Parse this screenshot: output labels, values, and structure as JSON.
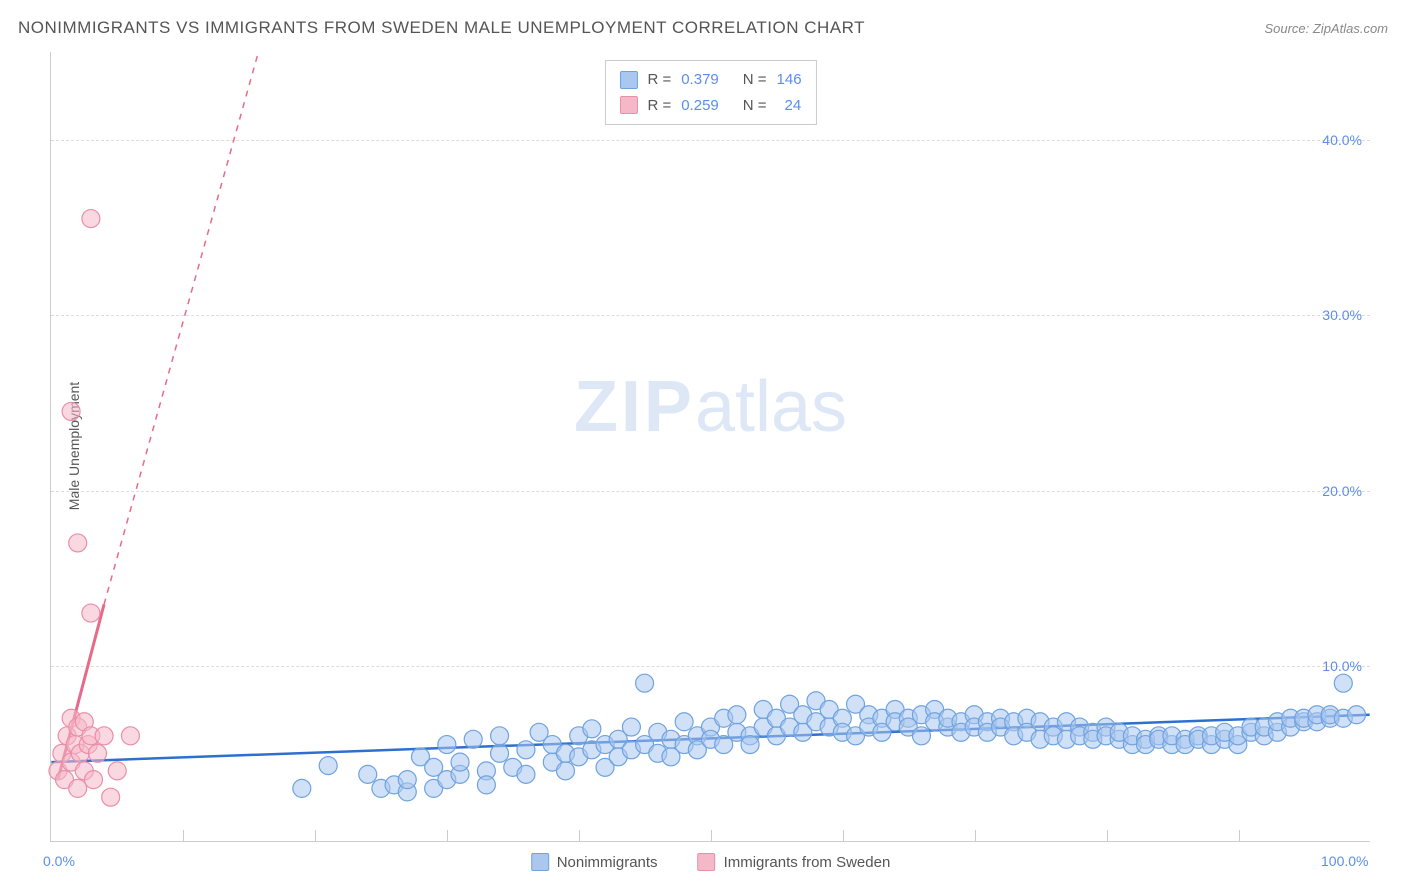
{
  "title": "NONIMMIGRANTS VS IMMIGRANTS FROM SWEDEN MALE UNEMPLOYMENT CORRELATION CHART",
  "source": "Source: ZipAtlas.com",
  "y_axis_label": "Male Unemployment",
  "watermark_bold": "ZIP",
  "watermark_rest": "atlas",
  "chart": {
    "type": "scatter",
    "xlim": [
      0,
      100
    ],
    "ylim": [
      0,
      45
    ],
    "x_ticks": [
      0,
      100
    ],
    "x_tick_labels": [
      "0.0%",
      "100.0%"
    ],
    "x_minor_ticks": [
      10,
      20,
      30,
      40,
      50,
      60,
      70,
      80,
      90
    ],
    "y_ticks": [
      10,
      20,
      30,
      40
    ],
    "y_tick_labels": [
      "10.0%",
      "20.0%",
      "30.0%",
      "40.0%"
    ],
    "background_color": "#ffffff",
    "grid_color": "#dddddd",
    "marker_radius": 9,
    "marker_opacity": 0.55,
    "line_width": 2.5,
    "series": [
      {
        "key": "nonimmigrants",
        "label": "Nonimmigrants",
        "color_fill": "#a9c7ef",
        "color_stroke": "#6fa3e0",
        "R": "0.379",
        "N": "146",
        "trend": {
          "x1": 0,
          "y1": 4.5,
          "x2": 100,
          "y2": 7.2,
          "color": "#2f6fd0"
        },
        "points": [
          [
            19,
            3.0
          ],
          [
            21,
            4.3
          ],
          [
            24,
            3.8
          ],
          [
            25,
            3.0
          ],
          [
            26,
            3.2
          ],
          [
            27,
            2.8
          ],
          [
            27,
            3.5
          ],
          [
            28,
            4.8
          ],
          [
            29,
            3.0
          ],
          [
            29,
            4.2
          ],
          [
            30,
            5.5
          ],
          [
            30,
            3.5
          ],
          [
            31,
            3.8
          ],
          [
            31,
            4.5
          ],
          [
            32,
            5.8
          ],
          [
            33,
            4.0
          ],
          [
            33,
            3.2
          ],
          [
            34,
            5.0
          ],
          [
            34,
            6.0
          ],
          [
            35,
            4.2
          ],
          [
            36,
            3.8
          ],
          [
            36,
            5.2
          ],
          [
            37,
            6.2
          ],
          [
            38,
            4.5
          ],
          [
            38,
            5.5
          ],
          [
            39,
            4.0
          ],
          [
            39,
            5.0
          ],
          [
            40,
            6.0
          ],
          [
            40,
            4.8
          ],
          [
            41,
            5.2
          ],
          [
            41,
            6.4
          ],
          [
            42,
            4.2
          ],
          [
            42,
            5.5
          ],
          [
            43,
            5.8
          ],
          [
            43,
            4.8
          ],
          [
            44,
            6.5
          ],
          [
            44,
            5.2
          ],
          [
            45,
            9.0
          ],
          [
            45,
            5.5
          ],
          [
            46,
            5.0
          ],
          [
            46,
            6.2
          ],
          [
            47,
            5.8
          ],
          [
            47,
            4.8
          ],
          [
            48,
            6.8
          ],
          [
            48,
            5.5
          ],
          [
            49,
            6.0
          ],
          [
            49,
            5.2
          ],
          [
            50,
            6.5
          ],
          [
            50,
            5.8
          ],
          [
            51,
            7.0
          ],
          [
            51,
            5.5
          ],
          [
            52,
            6.2
          ],
          [
            52,
            7.2
          ],
          [
            53,
            6.0
          ],
          [
            53,
            5.5
          ],
          [
            54,
            7.5
          ],
          [
            54,
            6.5
          ],
          [
            55,
            6.0
          ],
          [
            55,
            7.0
          ],
          [
            56,
            7.8
          ],
          [
            56,
            6.5
          ],
          [
            57,
            6.2
          ],
          [
            57,
            7.2
          ],
          [
            58,
            8.0
          ],
          [
            58,
            6.8
          ],
          [
            59,
            7.5
          ],
          [
            59,
            6.5
          ],
          [
            60,
            7.0
          ],
          [
            60,
            6.2
          ],
          [
            61,
            7.8
          ],
          [
            61,
            6.0
          ],
          [
            62,
            7.2
          ],
          [
            62,
            6.5
          ],
          [
            63,
            7.0
          ],
          [
            63,
            6.2
          ],
          [
            64,
            7.5
          ],
          [
            64,
            6.8
          ],
          [
            65,
            7.0
          ],
          [
            65,
            6.5
          ],
          [
            66,
            7.2
          ],
          [
            66,
            6.0
          ],
          [
            67,
            7.5
          ],
          [
            67,
            6.8
          ],
          [
            68,
            6.5
          ],
          [
            68,
            7.0
          ],
          [
            69,
            6.8
          ],
          [
            69,
            6.2
          ],
          [
            70,
            7.2
          ],
          [
            70,
            6.5
          ],
          [
            71,
            6.8
          ],
          [
            71,
            6.2
          ],
          [
            72,
            7.0
          ],
          [
            72,
            6.5
          ],
          [
            73,
            6.8
          ],
          [
            73,
            6.0
          ],
          [
            74,
            7.0
          ],
          [
            74,
            6.2
          ],
          [
            75,
            6.8
          ],
          [
            75,
            5.8
          ],
          [
            76,
            6.5
          ],
          [
            76,
            6.0
          ],
          [
            77,
            6.8
          ],
          [
            77,
            5.8
          ],
          [
            78,
            6.5
          ],
          [
            78,
            6.0
          ],
          [
            79,
            6.2
          ],
          [
            79,
            5.8
          ],
          [
            80,
            6.5
          ],
          [
            80,
            6.0
          ],
          [
            81,
            5.8
          ],
          [
            81,
            6.2
          ],
          [
            82,
            5.5
          ],
          [
            82,
            6.0
          ],
          [
            83,
            5.8
          ],
          [
            83,
            5.5
          ],
          [
            84,
            6.0
          ],
          [
            84,
            5.8
          ],
          [
            85,
            5.5
          ],
          [
            85,
            6.0
          ],
          [
            86,
            5.8
          ],
          [
            86,
            5.5
          ],
          [
            87,
            6.0
          ],
          [
            87,
            5.8
          ],
          [
            88,
            5.5
          ],
          [
            88,
            6.0
          ],
          [
            89,
            5.8
          ],
          [
            89,
            6.2
          ],
          [
            90,
            5.5
          ],
          [
            90,
            6.0
          ],
          [
            91,
            6.2
          ],
          [
            91,
            6.5
          ],
          [
            92,
            6.0
          ],
          [
            92,
            6.5
          ],
          [
            93,
            6.2
          ],
          [
            93,
            6.8
          ],
          [
            94,
            6.5
          ],
          [
            94,
            7.0
          ],
          [
            95,
            6.8
          ],
          [
            95,
            7.0
          ],
          [
            96,
            6.8
          ],
          [
            96,
            7.2
          ],
          [
            97,
            7.0
          ],
          [
            97,
            7.2
          ],
          [
            98,
            7.0
          ],
          [
            98,
            9.0
          ],
          [
            99,
            7.2
          ]
        ]
      },
      {
        "key": "immigrants_sweden",
        "label": "Immigrants from Sweden",
        "color_fill": "#f5b8c8",
        "color_stroke": "#e98fa8",
        "R": "0.259",
        "N": "24",
        "trend": {
          "x1": 0.5,
          "y1": 3.5,
          "x2_solid": 4,
          "y2_solid": 13.5,
          "x2_dash": 25,
          "y2_dash": 70,
          "color": "#e86a8a"
        },
        "points": [
          [
            0.5,
            4.0
          ],
          [
            0.8,
            5.0
          ],
          [
            1.0,
            3.5
          ],
          [
            1.2,
            6.0
          ],
          [
            1.5,
            4.5
          ],
          [
            1.5,
            7.0
          ],
          [
            1.8,
            5.5
          ],
          [
            2.0,
            6.5
          ],
          [
            2.0,
            3.0
          ],
          [
            2.2,
            5.0
          ],
          [
            2.5,
            6.8
          ],
          [
            2.5,
            4.0
          ],
          [
            2.8,
            5.5
          ],
          [
            3.0,
            6.0
          ],
          [
            3.2,
            3.5
          ],
          [
            3.5,
            5.0
          ],
          [
            4.0,
            6.0
          ],
          [
            4.5,
            2.5
          ],
          [
            5.0,
            4.0
          ],
          [
            6.0,
            6.0
          ],
          [
            3.0,
            13.0
          ],
          [
            2.0,
            17.0
          ],
          [
            1.5,
            24.5
          ],
          [
            3.0,
            35.5
          ]
        ]
      }
    ]
  },
  "legend_bottom": [
    {
      "label": "Nonimmigrants",
      "fill": "#a9c7ef",
      "stroke": "#6fa3e0"
    },
    {
      "label": "Immigrants from Sweden",
      "fill": "#f5b8c8",
      "stroke": "#e98fa8"
    }
  ]
}
